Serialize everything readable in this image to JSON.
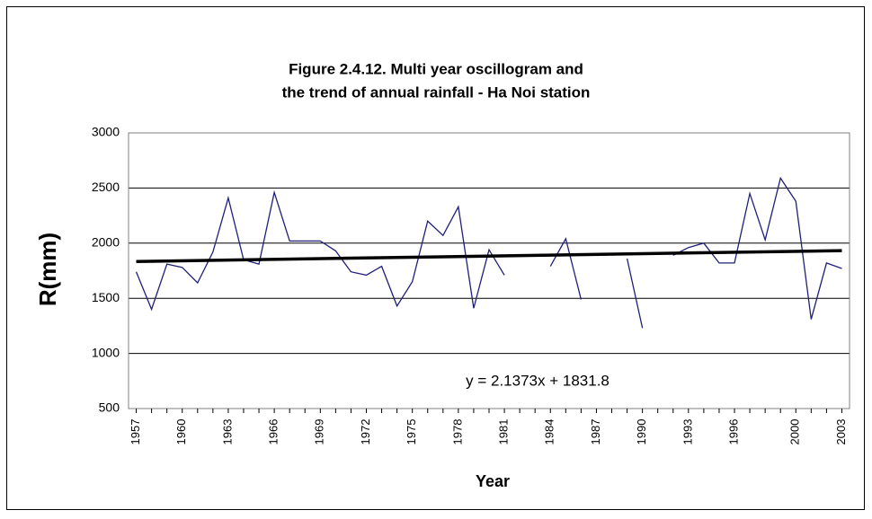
{
  "chart_data": {
    "type": "line",
    "title": [
      "Figure 2.4.12. Multi year oscillogram and",
      "the trend of annual rainfall - Ha Noi station"
    ],
    "x_label": "Year",
    "y_label": "R(mm)",
    "categories": [
      "1957",
      null,
      null,
      "1960",
      null,
      null,
      "1963",
      null,
      null,
      "1966",
      null,
      null,
      "1969",
      null,
      null,
      "1972",
      null,
      null,
      "1975",
      null,
      null,
      "1978",
      null,
      null,
      "1981",
      null,
      null,
      "1984",
      null,
      null,
      "1987",
      null,
      null,
      "1990",
      null,
      null,
      "1993",
      null,
      null,
      "1996",
      null,
      null,
      null,
      "2000",
      null,
      null,
      "2003"
    ],
    "series": [
      {
        "name": "R",
        "color": "#1f1f7a",
        "values": [
          1740,
          1400,
          1810,
          1780,
          1640,
          1920,
          2410,
          1850,
          1810,
          2460,
          2020,
          2020,
          2020,
          1930,
          1740,
          1710,
          1790,
          1430,
          1650,
          2200,
          2070,
          2330,
          1410,
          1940,
          1710,
          null,
          null,
          1790,
          2040,
          1490,
          null,
          null,
          1860,
          1230,
          null,
          1890,
          1960,
          2000,
          1820,
          1820,
          2450,
          2030,
          2590,
          2380,
          1310,
          1820,
          1770
        ]
      }
    ],
    "trendline": {
      "slope": 2.1373,
      "intercept": 1831.8,
      "color": "#000000",
      "label": "y = 2.1373x + 1831.8"
    },
    "ylim": [
      500,
      3000
    ],
    "yticks": [
      500,
      1000,
      1500,
      2000,
      2500,
      3000
    ],
    "grid": true
  }
}
